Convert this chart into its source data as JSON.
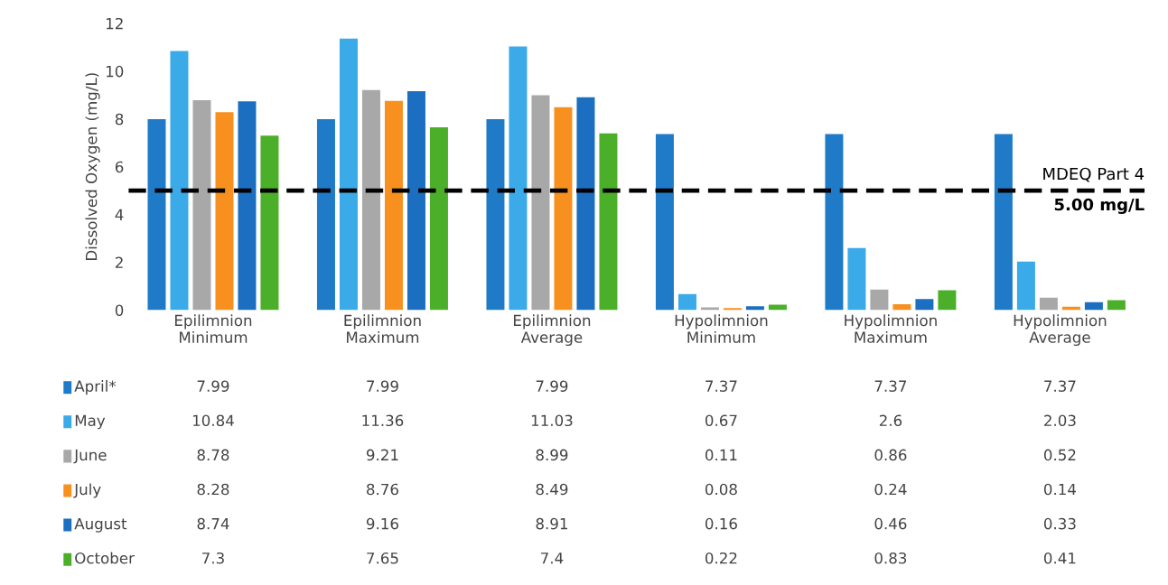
{
  "chart_data": {
    "type": "bar",
    "ylabel": "Dissolved Oxygen (mg/L)",
    "categories": [
      "Epilimnion\nMinimum",
      "Epilimnion\nMaximum",
      "Epilimnion\nAverage",
      "Hypolimnion\nMinimum",
      "Hypolimnion\nMaximum",
      "Hypolimnion\nAverage"
    ],
    "series": [
      {
        "name": "April*",
        "color": "#1f7bc8",
        "values": [
          7.99,
          7.99,
          7.99,
          7.37,
          7.37,
          7.37
        ]
      },
      {
        "name": "May",
        "color": "#3aaae8",
        "values": [
          10.84,
          11.36,
          11.03,
          0.67,
          2.6,
          2.03
        ]
      },
      {
        "name": "June",
        "color": "#a8a8a8",
        "values": [
          8.78,
          9.21,
          8.99,
          0.11,
          0.86,
          0.52
        ]
      },
      {
        "name": "July",
        "color": "#f7901e",
        "values": [
          8.28,
          8.76,
          8.49,
          0.08,
          0.24,
          0.14
        ]
      },
      {
        "name": "August",
        "color": "#1b6ec0",
        "values": [
          8.74,
          9.16,
          8.91,
          0.16,
          0.46,
          0.33
        ]
      },
      {
        "name": "October",
        "color": "#4caf2a",
        "values": [
          7.3,
          7.65,
          7.4,
          0.22,
          0.83,
          0.41
        ]
      }
    ],
    "ylim": [
      0,
      12
    ],
    "yticks": [
      0,
      2,
      4,
      6,
      8,
      10,
      12
    ],
    "grid": false,
    "data_labels": true,
    "legend": "bottom left",
    "ref_lines": [
      {
        "axis": "y",
        "value": 5,
        "label": "MDEQ Part 4",
        "color": "#000000",
        "line_style": "dashed"
      }
    ],
    "annotations": [
      "5.00 mg/L"
    ]
  }
}
